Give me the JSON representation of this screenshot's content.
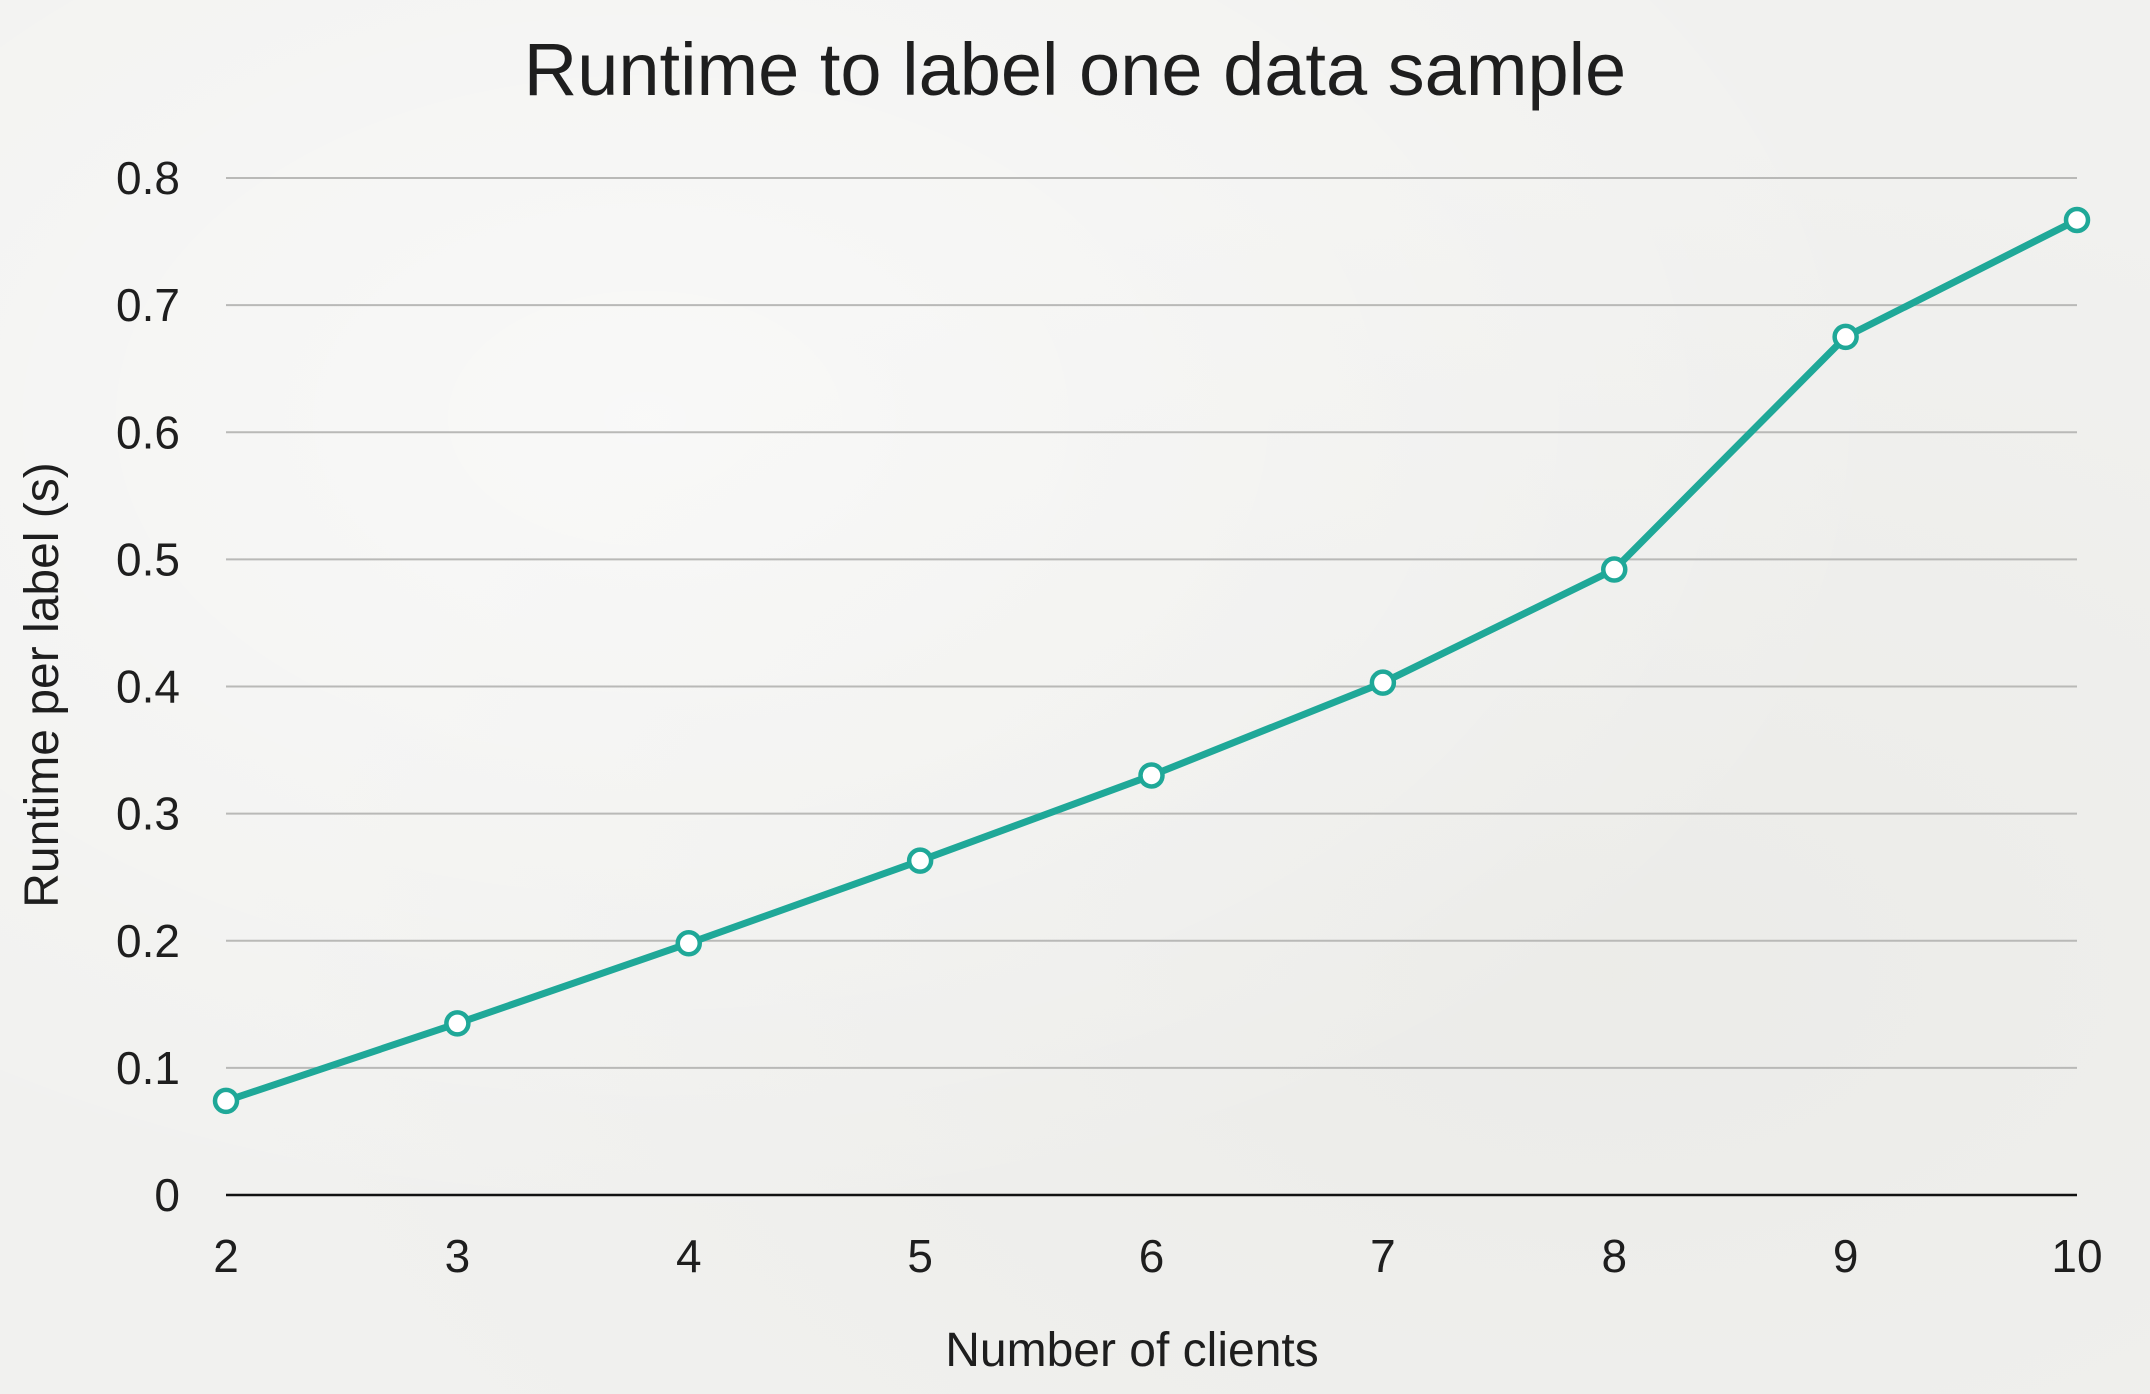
{
  "chart_data": {
    "type": "line",
    "title": "Runtime to label one data sample",
    "xlabel": "Number of clients",
    "ylabel": "Runtime per label (s)",
    "x": [
      2,
      3,
      4,
      5,
      6,
      7,
      8,
      9,
      10
    ],
    "x_ticks": [
      "2",
      "3",
      "4",
      "5",
      "6",
      "7",
      "8",
      "9",
      "10"
    ],
    "y_ticks": [
      "0",
      "0.1",
      "0.2",
      "0.3",
      "0.4",
      "0.5",
      "0.6",
      "0.7",
      "0.8"
    ],
    "ylim": [
      0,
      0.8
    ],
    "xlim": [
      2,
      10
    ],
    "grid": true,
    "legend": "none",
    "series": [
      {
        "values": [
          0.074,
          0.135,
          0.198,
          0.263,
          0.33,
          0.403,
          0.492,
          0.675,
          0.767
        ],
        "color": "#1fa898",
        "marker": "hollow-circle"
      }
    ]
  }
}
